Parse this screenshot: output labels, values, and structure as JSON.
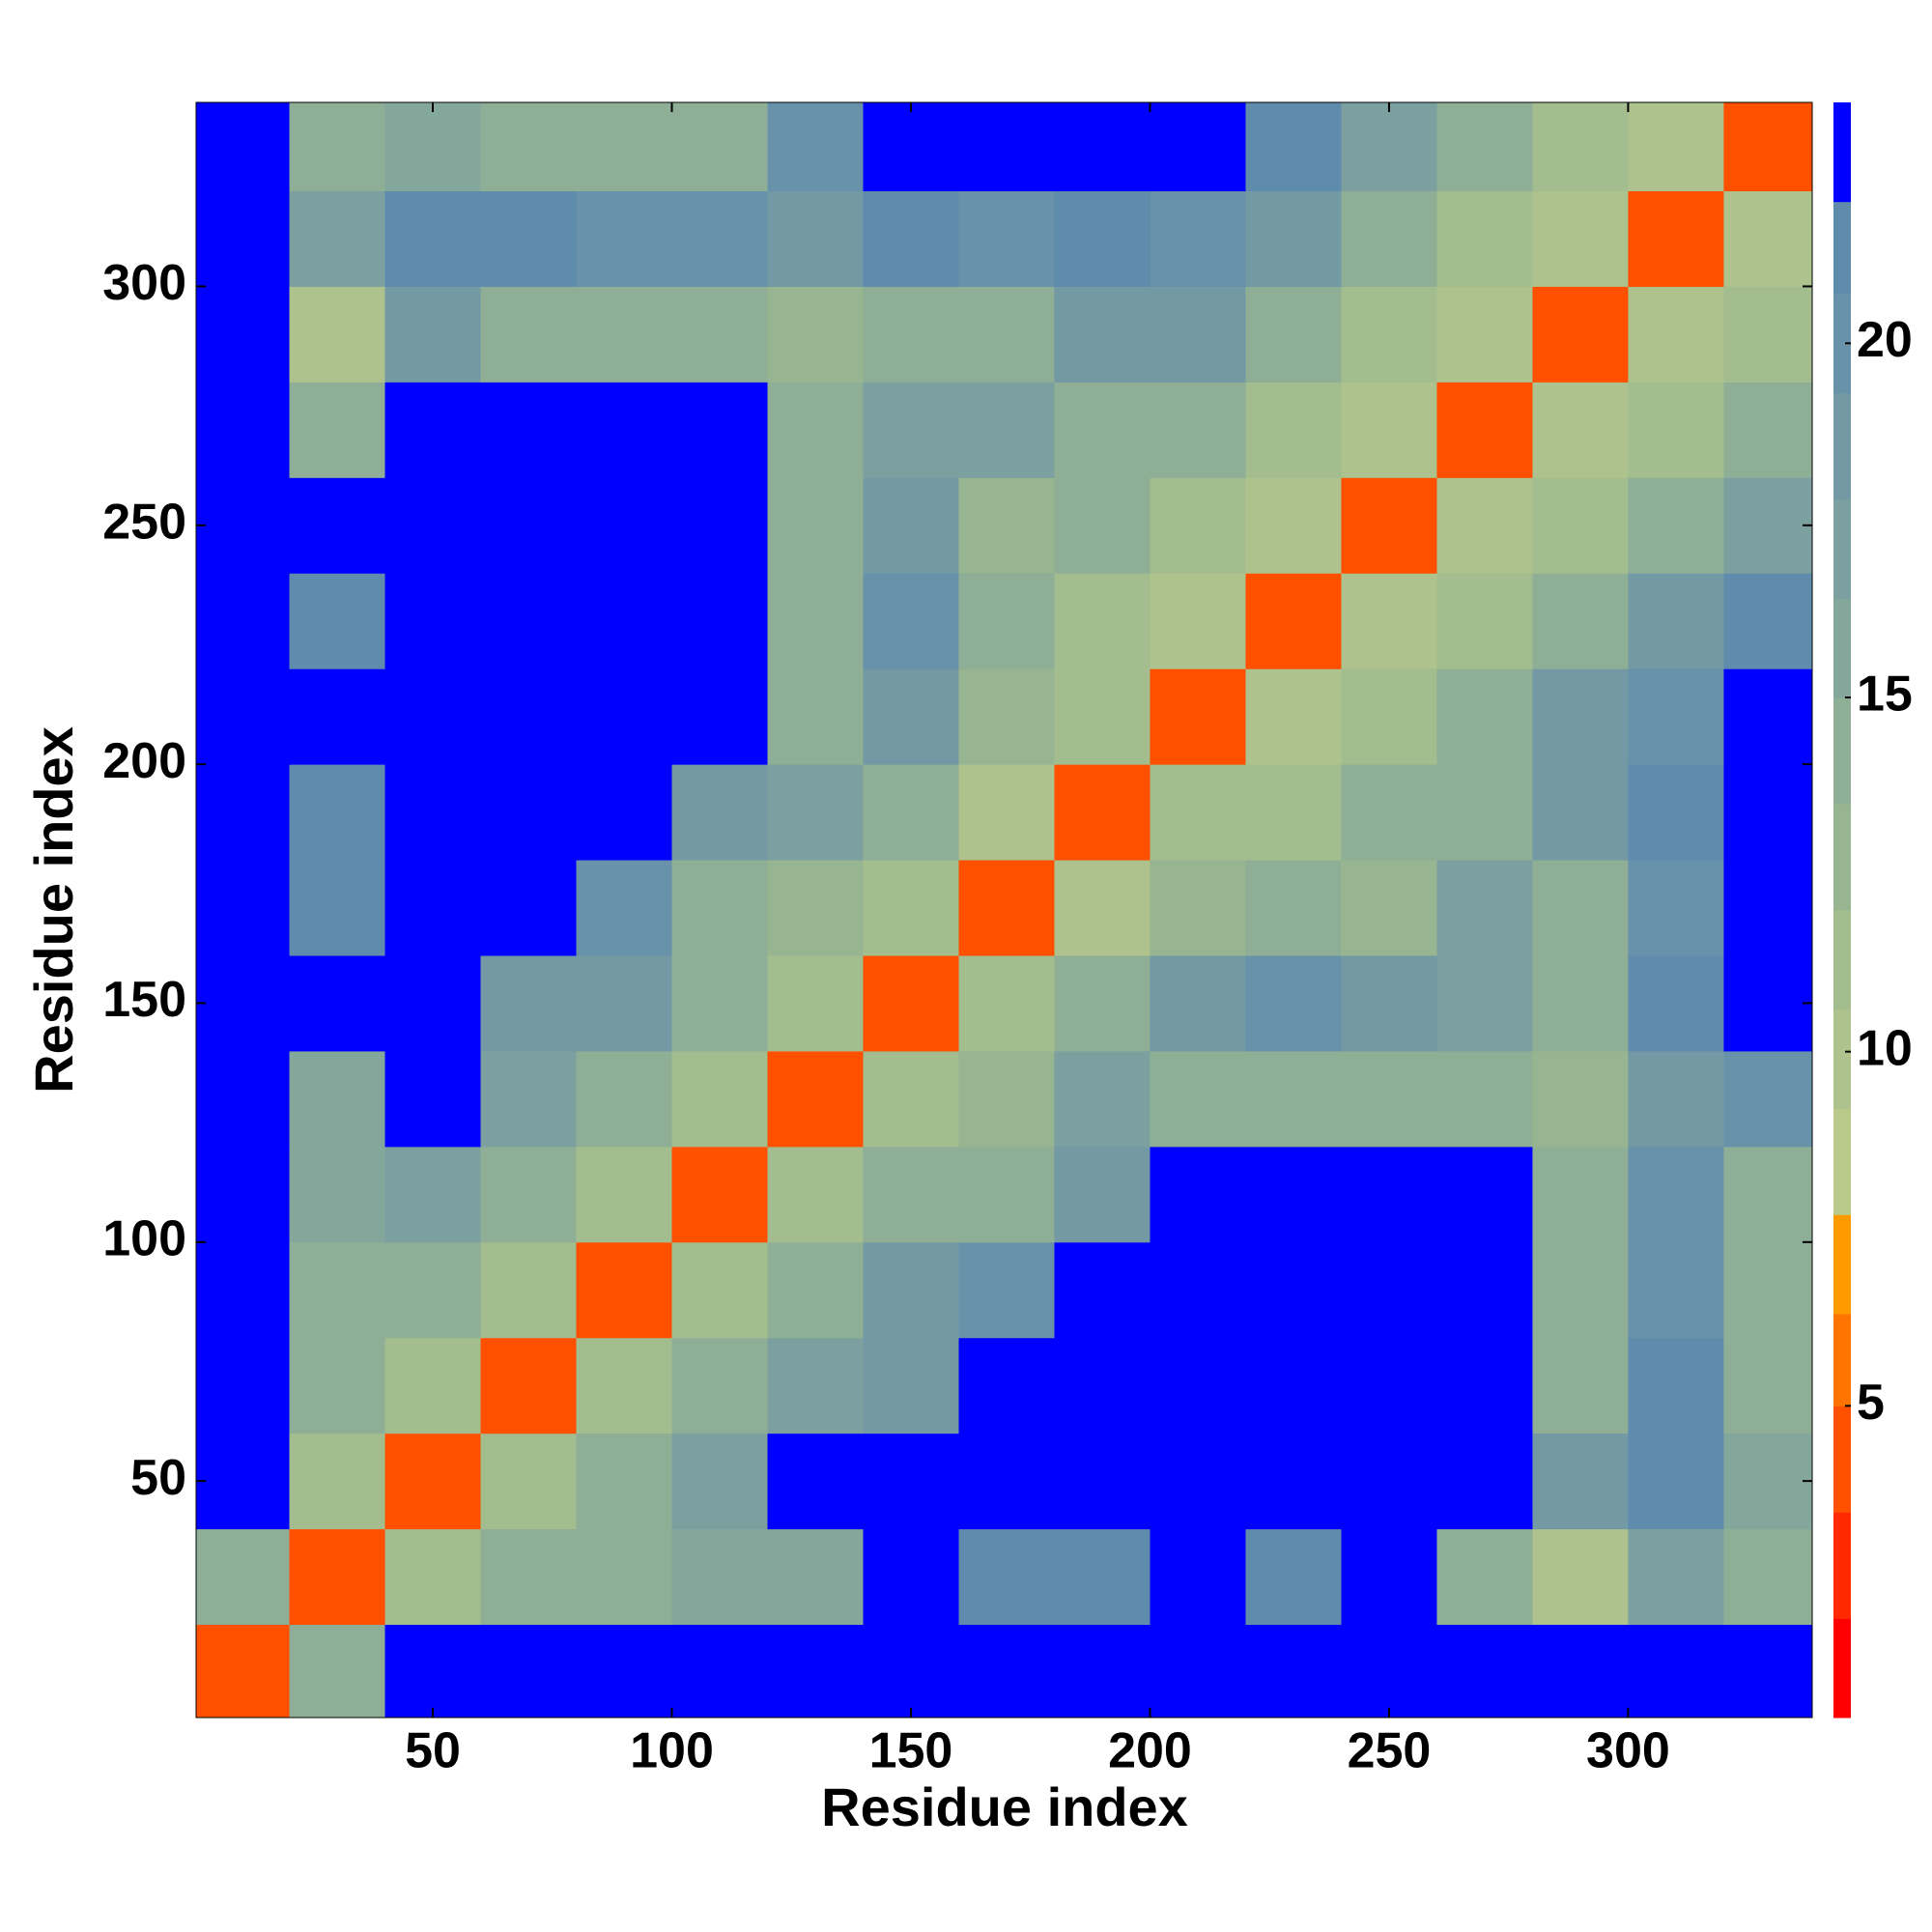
{
  "chart_data": {
    "type": "heatmap",
    "xlabel": "Residue index",
    "ylabel": "Residue index",
    "x": [
      10,
      30,
      50,
      70,
      90,
      110,
      130,
      150,
      170,
      190,
      210,
      230,
      250,
      270,
      290,
      310,
      330
    ],
    "y": [
      10,
      30,
      50,
      70,
      90,
      110,
      130,
      150,
      170,
      190,
      210,
      230,
      250,
      270,
      290,
      310,
      330
    ],
    "z": [
      [
        4,
        14,
        23,
        23,
        23,
        23,
        23,
        23,
        23,
        23,
        23,
        23,
        23,
        23,
        23,
        23,
        23
      ],
      [
        14,
        4,
        11,
        14,
        15,
        16,
        16,
        23,
        21,
        22,
        23,
        21,
        23,
        15,
        10,
        17,
        14
      ],
      [
        23,
        11,
        4,
        11,
        14,
        17,
        23,
        23,
        23,
        23,
        23,
        23,
        23,
        23,
        18,
        22,
        16
      ],
      [
        23,
        14,
        11,
        4,
        12,
        15,
        17,
        18,
        23,
        23,
        23,
        23,
        23,
        23,
        15,
        21,
        15
      ],
      [
        23,
        15,
        14,
        12,
        4,
        12,
        15,
        19,
        20,
        23,
        23,
        23,
        23,
        23,
        14,
        20,
        14
      ],
      [
        23,
        16,
        17,
        15,
        12,
        4,
        11,
        14,
        15,
        19,
        23,
        23,
        23,
        23,
        15,
        20,
        15
      ],
      [
        23,
        16,
        23,
        17,
        15,
        11,
        4,
        11,
        13,
        17,
        14,
        15,
        15,
        14,
        13,
        18,
        20
      ],
      [
        23,
        23,
        23,
        18,
        19,
        14,
        11,
        4,
        11,
        15,
        19,
        20,
        19,
        17,
        15,
        21,
        23
      ],
      [
        23,
        21,
        23,
        23,
        20,
        15,
        13,
        11,
        4,
        10,
        13,
        14,
        13,
        17,
        14,
        20,
        23
      ],
      [
        23,
        22,
        23,
        23,
        23,
        19,
        17,
        15,
        10,
        4,
        11,
        12,
        14,
        14,
        19,
        22,
        23
      ],
      [
        23,
        23,
        23,
        23,
        23,
        23,
        14,
        19,
        13,
        11,
        4,
        10,
        12,
        15,
        19,
        20,
        23
      ],
      [
        23,
        21,
        23,
        23,
        23,
        23,
        15,
        20,
        14,
        12,
        10,
        4,
        10,
        12,
        14,
        18,
        22
      ],
      [
        23,
        23,
        23,
        23,
        23,
        23,
        15,
        19,
        13,
        14,
        12,
        10,
        4,
        10,
        12,
        15,
        17
      ],
      [
        23,
        15,
        23,
        23,
        23,
        23,
        14,
        17,
        17,
        14,
        15,
        12,
        10,
        4,
        10,
        12,
        14
      ],
      [
        23,
        10,
        18,
        15,
        14,
        15,
        13,
        15,
        14,
        19,
        19,
        14,
        12,
        10,
        4,
        10,
        12
      ],
      [
        23,
        17,
        22,
        21,
        20,
        20,
        18,
        21,
        20,
        22,
        20,
        18,
        15,
        12,
        10,
        4,
        10
      ],
      [
        23,
        14,
        16,
        15,
        14,
        15,
        20,
        23,
        23,
        23,
        23,
        22,
        17,
        14,
        12,
        10,
        4
      ]
    ],
    "xlim": [
      0.5,
      338.5
    ],
    "ylim": [
      0.5,
      338.5
    ],
    "xticks": [
      50,
      100,
      150,
      200,
      250,
      300
    ],
    "yticks": [
      50,
      100,
      150,
      200,
      250,
      300
    ],
    "colorbar": {
      "bounds": [
        0.6,
        2,
        3.5,
        5,
        6.3,
        7.7,
        9.2,
        10.6,
        12,
        13.5,
        15,
        16.4,
        17.8,
        19.3,
        20.7,
        22,
        23.4
      ],
      "colors": [
        "#ff0000",
        "#ff2a00",
        "#ff5000",
        "#ff7300",
        "#ff9a00",
        "#b9c98a",
        "#adc28c",
        "#a3bd8f",
        "#98b592",
        "#8eae96",
        "#84a79b",
        "#7ba09f",
        "#7299a4",
        "#6892a9",
        "#5f8bad",
        "#0000ff"
      ],
      "ticks": [
        5,
        10,
        15,
        20
      ]
    }
  }
}
